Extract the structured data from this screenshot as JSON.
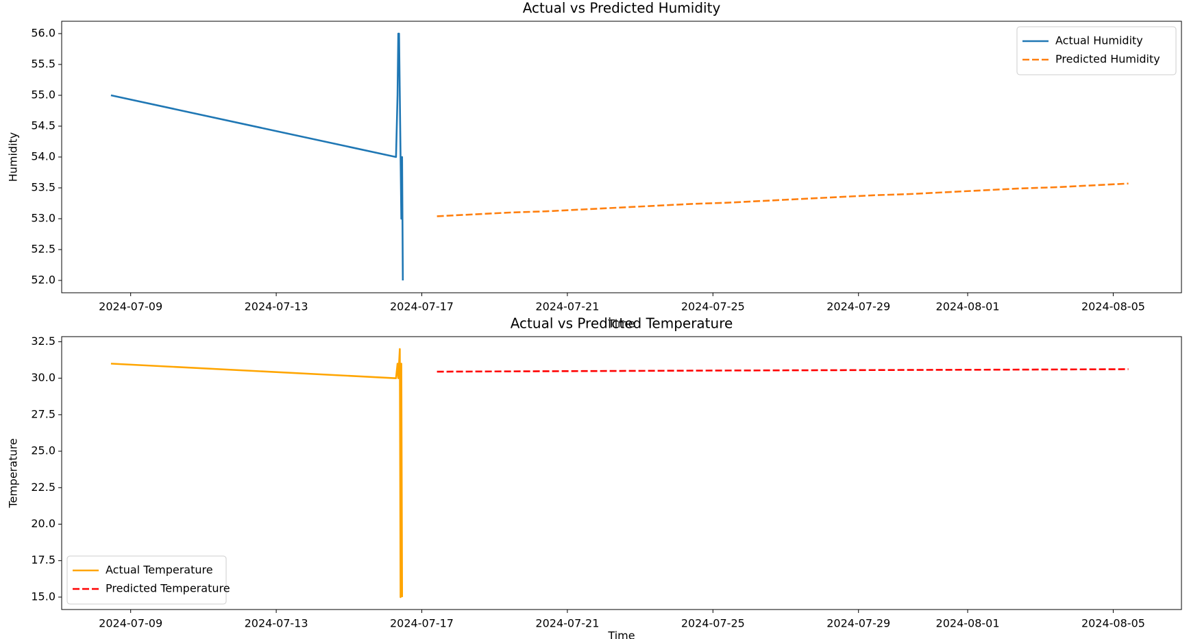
{
  "chart_data": [
    {
      "type": "line",
      "title": "Actual vs Predicted Humidity",
      "x_label": "Time",
      "y_label": "Humidity",
      "xlim": [
        "2024-07-07T02:30",
        "2024-08-06T21:00"
      ],
      "xticks": [
        "2024-07-09",
        "2024-07-13",
        "2024-07-17",
        "2024-07-21",
        "2024-07-25",
        "2024-07-29",
        "2024-08-01",
        "2024-08-05"
      ],
      "ylim": [
        51.8,
        56.2
      ],
      "yticks": [
        {
          "value": 52,
          "label": "52.0"
        },
        52.5,
        {
          "value": 53,
          "label": "53.0"
        },
        53.5,
        {
          "value": 54,
          "label": "54.0"
        },
        54.5,
        {
          "value": 55,
          "label": "55.0"
        },
        55.5,
        {
          "value": 56,
          "label": "56.0"
        }
      ],
      "legend": "upper right",
      "series": [
        {
          "name": "Actual Humidity",
          "color": "#1f77b4",
          "dashed": false,
          "x": [
            "2024-07-08T11:00",
            "2024-07-16T07:00",
            "2024-07-16T08:00",
            "2024-07-16T08:30",
            "2024-07-16T09:00",
            "2024-07-16T09:30",
            "2024-07-16T10:00",
            "2024-07-16T10:30",
            "2024-07-16T11:00",
            "2024-07-16T11:30"
          ],
          "values": [
            55,
            54,
            55,
            56,
            56,
            55,
            54,
            53,
            54,
            52
          ]
        },
        {
          "name": "Predicted Humidity",
          "color": "#ff7f0e",
          "dashed": true,
          "x": [
            "2024-07-17T10:00",
            "2024-07-18T10:00",
            "2024-07-19T10:00",
            "2024-07-20T10:00",
            "2024-07-21T10:00",
            "2024-07-22T10:00",
            "2024-07-23T10:00",
            "2024-07-24T10:00",
            "2024-07-25T10:00",
            "2024-07-26T10:00",
            "2024-07-27T10:00",
            "2024-07-28T10:00",
            "2024-07-29T10:00",
            "2024-07-30T10:00",
            "2024-07-31T10:00",
            "2024-08-01T10:00",
            "2024-08-02T10:00",
            "2024-08-03T10:00",
            "2024-08-04T10:00",
            "2024-08-05T10:00"
          ],
          "values": [
            53.04,
            53.07,
            53.1,
            53.12,
            53.15,
            53.18,
            53.21,
            53.24,
            53.26,
            53.29,
            53.32,
            53.35,
            53.38,
            53.4,
            53.43,
            53.46,
            53.49,
            53.51,
            53.54,
            53.57
          ]
        }
      ]
    },
    {
      "type": "line",
      "title": "Actual vs Predicted Temperature",
      "x_label": "Time",
      "y_label": "Temperature",
      "xlim": [
        "2024-07-07T02:30",
        "2024-08-06T21:00"
      ],
      "xticks": [
        "2024-07-09",
        "2024-07-13",
        "2024-07-17",
        "2024-07-21",
        "2024-07-25",
        "2024-07-29",
        "2024-08-01",
        "2024-08-05"
      ],
      "ylim": [
        14.15,
        32.85
      ],
      "yticks": [
        {
          "value": 15,
          "label": "15.0"
        },
        17.5,
        {
          "value": 20,
          "label": "20.0"
        },
        22.5,
        {
          "value": 25,
          "label": "25.0"
        },
        27.5,
        {
          "value": 30,
          "label": "30.0"
        },
        32.5
      ],
      "legend": "lower left",
      "series": [
        {
          "name": "Actual Temperature",
          "color": "#ffa500",
          "dashed": false,
          "x": [
            "2024-07-08T11:00",
            "2024-07-16T07:00",
            "2024-07-16T08:00",
            "2024-07-16T08:30",
            "2024-07-16T09:30",
            "2024-07-16T10:00",
            "2024-07-16T10:30",
            "2024-07-16T11:00"
          ],
          "values": [
            31,
            30,
            31,
            30,
            32,
            15,
            31,
            15
          ]
        },
        {
          "name": "Predicted Temperature",
          "color": "#ff0000",
          "dashed": true,
          "x": [
            "2024-07-17T10:00",
            "2024-07-21T10:00",
            "2024-07-25T10:00",
            "2024-07-29T10:00",
            "2024-08-02T10:00",
            "2024-08-05T10:00"
          ],
          "values": [
            30.45,
            30.49,
            30.53,
            30.56,
            30.59,
            30.62
          ]
        }
      ]
    }
  ]
}
